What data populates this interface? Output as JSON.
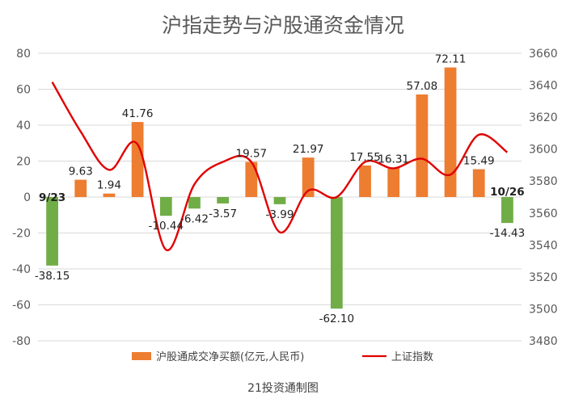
{
  "chart_data": {
    "type": "bar",
    "title": "沪指走势与沪股通资金情况",
    "source": "21投资通制图",
    "categories_first_last": [
      "9/23",
      "10/26"
    ],
    "ylim_left": [
      -80,
      80
    ],
    "yticks_left": [
      "80",
      "60",
      "40",
      "20",
      "0",
      "-20",
      "-40",
      "-60",
      "-80"
    ],
    "ylim_right": [
      3480,
      3660
    ],
    "yticks_right": [
      "3660",
      "3640",
      "3620",
      "3600",
      "3580",
      "3560",
      "3540",
      "3520",
      "3500",
      "3480"
    ],
    "series": [
      {
        "name": "沪股通成交净买额(亿元,人民币)",
        "type": "bar",
        "axis": "left",
        "values": [
          -38.15,
          9.63,
          1.94,
          41.76,
          -10.44,
          -6.42,
          -3.57,
          19.57,
          -3.99,
          21.97,
          -62.1,
          17.55,
          16.31,
          57.08,
          72.11,
          15.49,
          -14.43
        ],
        "labels": [
          "-38.15",
          "9.63",
          "1.94",
          "41.76",
          "-10.44",
          "-6.42",
          "-3.57",
          "19.57",
          "-3.99",
          "21.97",
          "-62.10",
          "17.55",
          "16.31",
          "57.08",
          "72.11",
          "15.49",
          "-14.43"
        ]
      },
      {
        "name": "上证指数",
        "type": "line",
        "axis": "right",
        "smooth": true,
        "values": [
          3642,
          3611,
          3587,
          3603,
          3537,
          3578,
          3592,
          3592,
          3548,
          3574,
          3570,
          3592,
          3588,
          3594,
          3584,
          3609,
          3598
        ]
      }
    ],
    "colors": {
      "positive": "#ED7D31",
      "negative": "#70AD47",
      "line": "#E00000",
      "grid": "#D9D9D9",
      "text": "#595959"
    },
    "grid": true,
    "legend": "bottom"
  }
}
